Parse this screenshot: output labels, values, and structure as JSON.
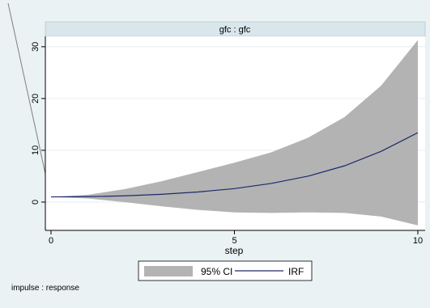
{
  "chart_data": {
    "type": "area",
    "title": "gfc : gfc",
    "xlabel": "step",
    "ylabel": "",
    "xlim": [
      0,
      10
    ],
    "ylim": [
      -5,
      32
    ],
    "xticks": [
      0,
      5,
      10
    ],
    "yticks": [
      0,
      10,
      20,
      30
    ],
    "x": [
      0,
      1,
      2,
      3,
      4,
      5,
      6,
      7,
      8,
      9,
      10
    ],
    "series": [
      {
        "name": "95% CI",
        "kind": "band",
        "lower": [
          1.0,
          0.7,
          0.0,
          -0.8,
          -1.5,
          -2.0,
          -2.1,
          -2.0,
          -2.1,
          -2.8,
          -4.5
        ],
        "upper": [
          1.0,
          1.4,
          2.5,
          4.0,
          5.8,
          7.6,
          9.6,
          12.4,
          16.4,
          22.5,
          31.3
        ],
        "color": "#b3b3b3"
      },
      {
        "name": "IRF",
        "kind": "line",
        "values": [
          1.0,
          1.05,
          1.2,
          1.5,
          1.95,
          2.6,
          3.6,
          5.0,
          7.0,
          9.8,
          13.4
        ],
        "color": "#1a2a6c"
      }
    ],
    "legend": {
      "position": "bottom",
      "items": [
        "95% CI",
        "IRF"
      ]
    },
    "grid": true,
    "note": "impulse : response"
  }
}
